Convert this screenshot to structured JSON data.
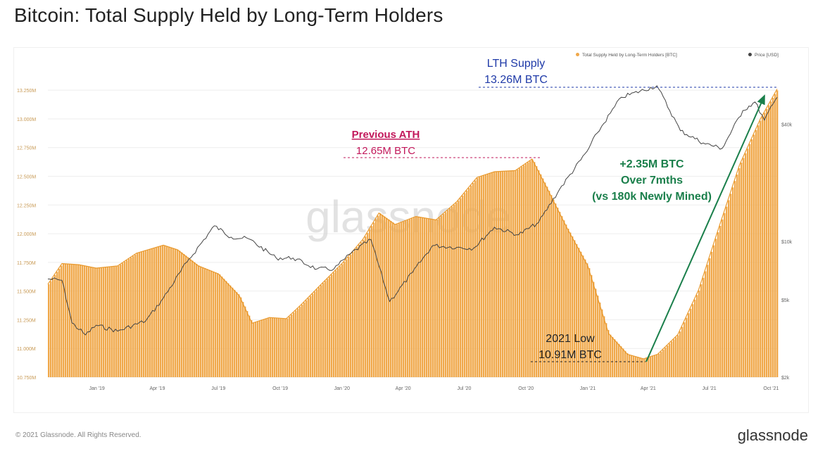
{
  "page": {
    "title": "Bitcoin: Total Supply Held by Long-Term Holders",
    "copyright": "© 2021 Glassnode. All Rights Reserved.",
    "logo": "glassnode",
    "watermark": "glassnode"
  },
  "colors": {
    "supply_fill": "#f0a84a",
    "supply_stroke": "#e8992e",
    "price_line": "#444444",
    "lth_annotation": "#1f3aa8",
    "ath_annotation": "#c2185b",
    "growth_annotation": "#1a7f4b",
    "low_annotation": "#222222"
  },
  "annotations": {
    "lth_title": "LTH Supply",
    "lth_value": "13.26M BTC",
    "ath_title": "Previous ATH",
    "ath_value": "12.65M BTC",
    "growth_line1": "+2.35M BTC",
    "growth_line2": "Over 7mths",
    "growth_line3": "(vs 180k Newly Mined)",
    "low_title": "2021 Low",
    "low_value": "10.91M BTC"
  },
  "chart_data": {
    "type": "area",
    "title": "Bitcoin: Total Supply Held by Long-Term Holders",
    "legend_position": "top-right",
    "legend": [
      {
        "name": "Total Supply Held by Long-Term Holders [BTC]",
        "color": "#f0a84a"
      },
      {
        "name": "Price [USD]",
        "color": "#444444"
      }
    ],
    "x_tick_labels": [
      "Jan '19",
      "Apr '19",
      "Jul '19",
      "Oct '19",
      "Jan '20",
      "Apr '20",
      "Jul '20",
      "Oct '20",
      "Jan '21",
      "Apr '21",
      "Jul '21",
      "Oct '21"
    ],
    "x_tick_dates": [
      "2019-01-01",
      "2019-04-01",
      "2019-07-01",
      "2019-10-01",
      "2020-01-01",
      "2020-04-01",
      "2020-07-01",
      "2020-10-01",
      "2021-01-01",
      "2021-04-01",
      "2021-07-01",
      "2021-10-01"
    ],
    "x_range": [
      "2018-10-20",
      "2021-10-10"
    ],
    "y_left_ticks": [
      10750000,
      11000000,
      11250000,
      11500000,
      11750000,
      12000000,
      12250000,
      12500000,
      12750000,
      13000000,
      13250000
    ],
    "y_left_tick_labels": [
      "10.750M",
      "11.000M",
      "11.250M",
      "11.500M",
      "11.750M",
      "12.000M",
      "12.250M",
      "12.500M",
      "12.750M",
      "13.000M",
      "13.250M"
    ],
    "y_left_range": [
      10750000,
      13300000
    ],
    "y_right_scale": "log",
    "y_right_ticks": [
      2000,
      5000,
      10000,
      40000
    ],
    "y_right_tick_labels": [
      "$2k",
      "$5k",
      "$10k",
      "$40k"
    ],
    "y_right_range": [
      2000,
      64000
    ],
    "grid": true,
    "series": [
      {
        "name": "Total Supply Held by Long-Term Holders [BTC]",
        "axis": "left",
        "points": [
          [
            "2018-10-20",
            11560000
          ],
          [
            "2018-11-10",
            11740000
          ],
          [
            "2018-12-05",
            11730000
          ],
          [
            "2018-12-31",
            11700000
          ],
          [
            "2019-02-01",
            11720000
          ],
          [
            "2019-03-01",
            11830000
          ],
          [
            "2019-04-10",
            11900000
          ],
          [
            "2019-05-01",
            11860000
          ],
          [
            "2019-06-01",
            11720000
          ],
          [
            "2019-07-01",
            11650000
          ],
          [
            "2019-08-01",
            11460000
          ],
          [
            "2019-08-20",
            11220000
          ],
          [
            "2019-09-15",
            11270000
          ],
          [
            "2019-10-10",
            11260000
          ],
          [
            "2019-11-01",
            11380000
          ],
          [
            "2019-12-01",
            11560000
          ],
          [
            "2020-01-01",
            11740000
          ],
          [
            "2020-02-01",
            11950000
          ],
          [
            "2020-02-25",
            12180000
          ],
          [
            "2020-03-20",
            12080000
          ],
          [
            "2020-04-20",
            12150000
          ],
          [
            "2020-05-20",
            12120000
          ],
          [
            "2020-06-20",
            12280000
          ],
          [
            "2020-07-20",
            12490000
          ],
          [
            "2020-08-15",
            12540000
          ],
          [
            "2020-09-15",
            12550000
          ],
          [
            "2020-10-10",
            12650000
          ],
          [
            "2020-11-01",
            12400000
          ],
          [
            "2020-12-01",
            12050000
          ],
          [
            "2021-01-01",
            11720000
          ],
          [
            "2021-02-01",
            11130000
          ],
          [
            "2021-03-01",
            10950000
          ],
          [
            "2021-03-25",
            10910000
          ],
          [
            "2021-04-15",
            10950000
          ],
          [
            "2021-05-15",
            11120000
          ],
          [
            "2021-06-15",
            11510000
          ],
          [
            "2021-07-15",
            12050000
          ],
          [
            "2021-08-15",
            12600000
          ],
          [
            "2021-09-15",
            13000000
          ],
          [
            "2021-10-10",
            13260000
          ]
        ]
      },
      {
        "name": "Price [USD]",
        "axis": "right",
        "points": [
          [
            "2018-10-20",
            6400
          ],
          [
            "2018-11-10",
            6300
          ],
          [
            "2018-11-25",
            3800
          ],
          [
            "2018-12-15",
            3300
          ],
          [
            "2018-12-31",
            3700
          ],
          [
            "2019-02-01",
            3450
          ],
          [
            "2019-03-15",
            3900
          ],
          [
            "2019-04-10",
            5100
          ],
          [
            "2019-05-15",
            7800
          ],
          [
            "2019-06-25",
            12000
          ],
          [
            "2019-07-20",
            10500
          ],
          [
            "2019-08-15",
            10300
          ],
          [
            "2019-09-25",
            8200
          ],
          [
            "2019-10-20",
            8200
          ],
          [
            "2019-11-25",
            7200
          ],
          [
            "2019-12-20",
            7200
          ],
          [
            "2020-01-15",
            8700
          ],
          [
            "2020-02-13",
            10200
          ],
          [
            "2020-03-12",
            4900
          ],
          [
            "2020-04-15",
            6900
          ],
          [
            "2020-05-15",
            9500
          ],
          [
            "2020-06-20",
            9300
          ],
          [
            "2020-07-15",
            9200
          ],
          [
            "2020-08-15",
            11800
          ],
          [
            "2020-09-20",
            10800
          ],
          [
            "2020-10-20",
            12500
          ],
          [
            "2020-11-20",
            18500
          ],
          [
            "2020-12-31",
            29000
          ],
          [
            "2021-01-15",
            36000
          ],
          [
            "2021-02-20",
            55000
          ],
          [
            "2021-04-14",
            63000
          ],
          [
            "2021-05-19",
            37000
          ],
          [
            "2021-06-22",
            32000
          ],
          [
            "2021-07-20",
            30000
          ],
          [
            "2021-08-20",
            47000
          ],
          [
            "2021-09-07",
            52000
          ],
          [
            "2021-09-21",
            42000
          ],
          [
            "2021-10-10",
            55000
          ]
        ]
      }
    ]
  }
}
